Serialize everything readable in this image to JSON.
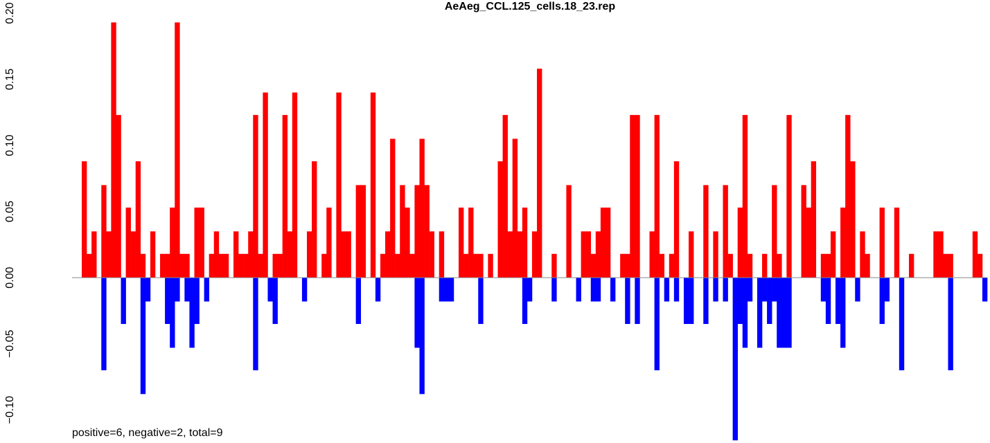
{
  "chart_data": {
    "type": "bar",
    "title": "AeAeg_CCL.125_cells.18_23.rep",
    "annotation": "positive=6, negative=2, total=9",
    "ylim": [
      -0.125,
      0.2
    ],
    "yticks": [
      {
        "value": -0.1,
        "label": "−0.10"
      },
      {
        "value": -0.05,
        "label": "−0.05"
      },
      {
        "value": 0,
        "label": "0.00"
      },
      {
        "value": 0.05,
        "label": "0.05"
      },
      {
        "value": 0.1,
        "label": "0.10"
      },
      {
        "value": 0.15,
        "label": "0.15"
      },
      {
        "value": 0.2,
        "label": "0.20"
      }
    ],
    "series": [
      {
        "color": "#ff0000",
        "values": [
          0.088,
          0.018,
          0.035,
          0,
          0.07,
          0.035,
          0.193,
          0.123,
          0,
          0.053,
          0.035,
          0.088,
          0.018,
          0,
          0.035,
          0,
          0.018,
          0.018,
          0.053,
          0.193,
          0.018,
          0.018,
          0,
          0.053,
          0.053,
          0,
          0.018,
          0.035,
          0.018,
          0.018,
          0,
          0.035,
          0.018,
          0.018,
          0.035,
          0.123,
          0.018,
          0.14,
          0,
          0.018,
          0.018,
          0.123,
          0.035,
          0.14,
          0,
          0,
          0.035,
          0.088,
          0,
          0.018,
          0.053,
          0,
          0.14,
          0.035,
          0.035,
          0,
          0.07,
          0.07,
          0,
          0.14,
          0,
          0.018,
          0.035,
          0.105,
          0.018,
          0.07,
          0.053,
          0.018,
          0.07,
          0.105,
          0.07,
          0.035,
          0,
          0.035,
          0,
          0,
          0,
          0.053,
          0.018,
          0.053,
          0.018,
          0.018,
          0,
          0.018,
          0,
          0.088,
          0.123,
          0.035,
          0.105,
          0.035,
          0.053,
          0,
          0.035,
          0.158,
          0,
          0,
          0.018,
          0,
          0,
          0.07,
          0,
          0,
          0.035,
          0.035,
          0.018,
          0.035,
          0.053,
          0.053,
          0,
          0,
          0.018,
          0.018,
          0.123,
          0.123,
          0,
          0,
          0.035,
          0.123,
          0.018,
          0,
          0.018,
          0.088,
          0,
          0,
          0.035,
          0,
          0,
          0.07,
          0,
          0.035,
          0,
          0.07,
          0.018,
          0,
          0.053,
          0.123,
          0.018,
          0,
          0,
          0.018,
          0,
          0.07,
          0.018,
          0,
          0.123,
          0,
          0,
          0.07,
          0.053,
          0.088,
          0,
          0.018,
          0.018,
          0.035,
          0,
          0.053,
          0.123,
          0.088,
          0,
          0.035,
          0.018,
          0,
          0,
          0.053,
          0,
          0,
          0.053,
          0,
          0,
          0.018,
          0,
          0,
          0,
          0,
          0.035,
          0.035,
          0.018,
          0.018,
          0,
          0,
          0,
          0,
          0.035,
          0.018,
          0
        ]
      },
      {
        "color": "#0000ff",
        "values": [
          0,
          0,
          0,
          0,
          -0.07,
          0,
          0,
          0,
          -0.035,
          0,
          0,
          0,
          -0.088,
          -0.018,
          0,
          0,
          0,
          -0.035,
          -0.053,
          -0.018,
          0,
          -0.018,
          -0.053,
          -0.035,
          0,
          -0.018,
          0,
          0,
          0,
          0,
          0,
          0,
          0,
          0,
          0,
          -0.07,
          0,
          0,
          -0.018,
          -0.035,
          0,
          0,
          0,
          0,
          0,
          -0.018,
          0,
          0,
          0,
          0,
          0,
          0,
          0,
          0,
          0,
          0,
          -0.035,
          0,
          0,
          0,
          -0.018,
          0,
          0,
          0,
          0,
          0,
          0,
          0,
          -0.053,
          -0.088,
          0,
          0,
          0,
          -0.018,
          -0.018,
          -0.018,
          0,
          0,
          0,
          0,
          0,
          -0.035,
          0,
          0,
          0,
          0,
          0,
          0,
          0,
          0,
          -0.035,
          -0.018,
          0,
          0,
          0,
          0,
          -0.018,
          0,
          0,
          0,
          0,
          -0.018,
          0,
          0,
          -0.018,
          -0.018,
          0,
          0,
          -0.018,
          0,
          0,
          -0.035,
          0,
          -0.035,
          0,
          0,
          0,
          -0.07,
          0,
          -0.018,
          0,
          -0.018,
          0,
          -0.035,
          -0.035,
          0,
          0,
          -0.035,
          0,
          -0.018,
          0,
          -0.018,
          0,
          -0.123,
          -0.035,
          -0.053,
          -0.018,
          0,
          -0.053,
          -0.018,
          -0.035,
          -0.018,
          -0.053,
          -0.053,
          -0.053,
          0,
          0,
          0,
          0,
          0,
          0,
          -0.018,
          -0.035,
          0,
          -0.035,
          -0.053,
          0,
          0,
          -0.018,
          0,
          0,
          0,
          0,
          -0.035,
          -0.018,
          0,
          0,
          -0.07,
          0,
          0,
          0,
          0,
          0,
          0,
          0,
          0,
          0,
          -0.07,
          0,
          0,
          0,
          0,
          0,
          0,
          -0.018
        ]
      }
    ]
  }
}
